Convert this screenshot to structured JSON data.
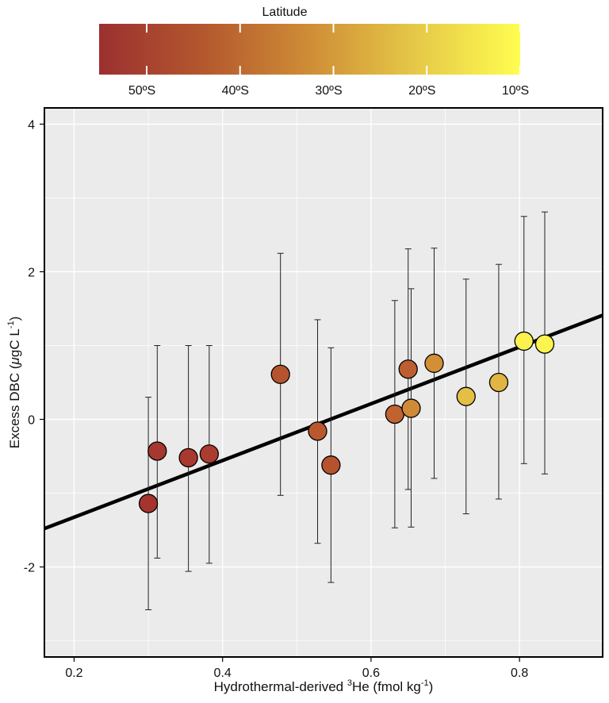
{
  "chart_data": {
    "type": "scatter",
    "xlabel_main": "Hydrothermal-derived ",
    "xlabel_sup": "3",
    "xlabel_rest": "He (fmol kg",
    "xlabel_sup2": "-1",
    "xlabel_end": ")",
    "ylabel_main": "Excess DBC (",
    "ylabel_mu": "μ",
    "ylabel_rest": "gC L",
    "ylabel_sup": "-1",
    "ylabel_end": ")",
    "xlim": [
      0.16,
      0.912
    ],
    "ylim": [
      -3.22,
      4.22
    ],
    "xticks": [
      0.2,
      0.4,
      0.6,
      0.8
    ],
    "xtick_labels": [
      "0.2",
      "0.4",
      "0.6",
      "0.8"
    ],
    "yticks": [
      -2,
      0,
      2,
      4
    ],
    "ytick_labels": [
      "-2",
      "0",
      "2",
      "4"
    ],
    "grid": true,
    "background": "#ebebeb",
    "regression_line": {
      "x": [
        0.16,
        0.912
      ],
      "y": [
        -1.48,
        1.41
      ]
    },
    "colorbar": {
      "title": "Latitude",
      "labels": [
        "50ºS",
        "40ºS",
        "30ºS",
        "20ºS",
        "10ºS"
      ],
      "colors": [
        "#9b3030",
        "#b4582e",
        "#cf8d36",
        "#e5c848",
        "#fffd50"
      ]
    },
    "points": [
      {
        "x": 0.3,
        "y": -1.14,
        "yerr_lo": -2.58,
        "yerr_hi": 0.3,
        "color": "#a5342f"
      },
      {
        "x": 0.312,
        "y": -0.43,
        "yerr_lo": -1.88,
        "yerr_hi": 1.0,
        "color": "#a6382f"
      },
      {
        "x": 0.354,
        "y": -0.52,
        "yerr_lo": -2.06,
        "yerr_hi": 1.0,
        "color": "#a7392f"
      },
      {
        "x": 0.382,
        "y": -0.47,
        "yerr_lo": -1.95,
        "yerr_hi": 1.0,
        "color": "#aa3d2f"
      },
      {
        "x": 0.478,
        "y": 0.61,
        "yerr_lo": -1.03,
        "yerr_hi": 2.25,
        "color": "#b5552f"
      },
      {
        "x": 0.528,
        "y": -0.16,
        "yerr_lo": -1.68,
        "yerr_hi": 1.35,
        "color": "#b9582f"
      },
      {
        "x": 0.546,
        "y": -0.62,
        "yerr_lo": -2.21,
        "yerr_hi": 0.97,
        "color": "#b5532f"
      },
      {
        "x": 0.632,
        "y": 0.07,
        "yerr_lo": -1.47,
        "yerr_hi": 1.61,
        "color": "#c06330"
      },
      {
        "x": 0.65,
        "y": 0.68,
        "yerr_lo": -0.95,
        "yerr_hi": 2.31,
        "color": "#bd5e30"
      },
      {
        "x": 0.654,
        "y": 0.15,
        "yerr_lo": -1.46,
        "yerr_hi": 1.77,
        "color": "#cf8a38"
      },
      {
        "x": 0.685,
        "y": 0.76,
        "yerr_lo": -0.8,
        "yerr_hi": 2.32,
        "color": "#d38f36"
      },
      {
        "x": 0.728,
        "y": 0.31,
        "yerr_lo": -1.28,
        "yerr_hi": 1.9,
        "color": "#e4bf45"
      },
      {
        "x": 0.772,
        "y": 0.5,
        "yerr_lo": -1.08,
        "yerr_hi": 2.1,
        "color": "#e1b443"
      },
      {
        "x": 0.806,
        "y": 1.06,
        "yerr_lo": -0.6,
        "yerr_hi": 2.75,
        "color": "#fbf14f"
      },
      {
        "x": 0.834,
        "y": 1.02,
        "yerr_lo": -0.74,
        "yerr_hi": 2.81,
        "color": "#fbf350"
      }
    ]
  }
}
